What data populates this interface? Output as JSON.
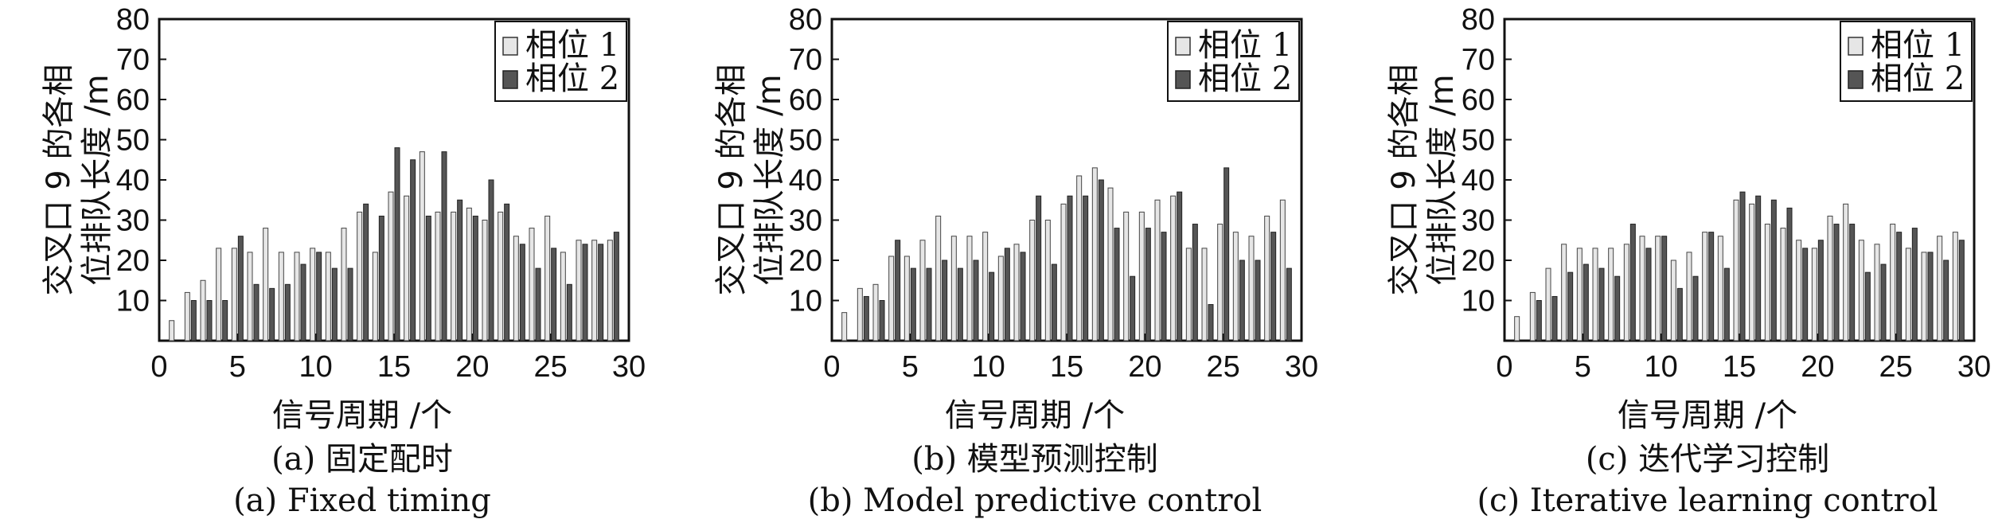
{
  "y_label_line1": "交叉口 9 的各相",
  "y_label_line2": "位排队长度 /m",
  "x_label": "信号周期 /个",
  "legend_labels": [
    "相位 1",
    "相位 2"
  ],
  "colors": {
    "phase1": "#e6e6e6",
    "phase2": "#555555",
    "axis": "#111111"
  },
  "chart_data": [
    {
      "type": "bar",
      "caption_cn": "(a) 固定配时",
      "caption_en": "(a) Fixed timing",
      "xlim": [
        0,
        30
      ],
      "ylim": [
        0,
        80
      ],
      "xticks": [
        0,
        5,
        10,
        15,
        20,
        25,
        30
      ],
      "yticks": [
        10,
        20,
        30,
        40,
        50,
        60,
        70,
        80
      ],
      "x": [
        1,
        2,
        3,
        4,
        5,
        6,
        7,
        8,
        9,
        10,
        11,
        12,
        13,
        14,
        15,
        16,
        17,
        18,
        19,
        20,
        21,
        22,
        23,
        24,
        25,
        26,
        27,
        28,
        29
      ],
      "legend_position": "top-right",
      "series": [
        {
          "name": "相位 1",
          "values": [
            5,
            12,
            15,
            23,
            23,
            22,
            28,
            22,
            22,
            23,
            22,
            28,
            32,
            22,
            37,
            36,
            47,
            32,
            32,
            33,
            30,
            32,
            26,
            28,
            31,
            22,
            25,
            25,
            25
          ]
        },
        {
          "name": "相位 2",
          "values": [
            0,
            10,
            10,
            10,
            26,
            14,
            13,
            14,
            19,
            22,
            18,
            18,
            34,
            31,
            48,
            45,
            31,
            47,
            35,
            31,
            40,
            34,
            24,
            18,
            23,
            14,
            24,
            24,
            27
          ]
        }
      ]
    },
    {
      "type": "bar",
      "caption_cn": "(b) 模型预测控制",
      "caption_en": "(b) Model predictive control",
      "xlim": [
        0,
        30
      ],
      "ylim": [
        0,
        80
      ],
      "xticks": [
        0,
        5,
        10,
        15,
        20,
        25,
        30
      ],
      "yticks": [
        10,
        20,
        30,
        40,
        50,
        60,
        70,
        80
      ],
      "x": [
        1,
        2,
        3,
        4,
        5,
        6,
        7,
        8,
        9,
        10,
        11,
        12,
        13,
        14,
        15,
        16,
        17,
        18,
        19,
        20,
        21,
        22,
        23,
        24,
        25,
        26,
        27,
        28,
        29
      ],
      "legend_position": "top-right",
      "series": [
        {
          "name": "相位 1",
          "values": [
            7,
            13,
            14,
            21,
            21,
            25,
            31,
            26,
            26,
            27,
            21,
            24,
            30,
            30,
            34,
            41,
            43,
            38,
            32,
            32,
            35,
            36,
            23,
            23,
            29,
            27,
            26,
            31,
            35
          ]
        },
        {
          "name": "相位 2",
          "values": [
            0,
            11,
            10,
            25,
            18,
            18,
            20,
            18,
            20,
            17,
            23,
            22,
            36,
            19,
            36,
            36,
            40,
            28,
            16,
            28,
            27,
            37,
            29,
            9,
            43,
            20,
            20,
            27,
            18
          ]
        }
      ]
    },
    {
      "type": "bar",
      "caption_cn": "(c) 迭代学习控制",
      "caption_en": "(c) Iterative learning control",
      "xlim": [
        0,
        30
      ],
      "ylim": [
        0,
        80
      ],
      "xticks": [
        0,
        5,
        10,
        15,
        20,
        25,
        30
      ],
      "yticks": [
        10,
        20,
        30,
        40,
        50,
        60,
        70,
        80
      ],
      "x": [
        1,
        2,
        3,
        4,
        5,
        6,
        7,
        8,
        9,
        10,
        11,
        12,
        13,
        14,
        15,
        16,
        17,
        18,
        19,
        20,
        21,
        22,
        23,
        24,
        25,
        26,
        27,
        28,
        29
      ],
      "legend_position": "top-right",
      "series": [
        {
          "name": "相位 1",
          "values": [
            6,
            12,
            18,
            24,
            23,
            23,
            23,
            24,
            26,
            26,
            20,
            22,
            27,
            26,
            35,
            34,
            29,
            28,
            25,
            23,
            31,
            34,
            25,
            24,
            29,
            23,
            22,
            26,
            27
          ]
        },
        {
          "name": "相位 2",
          "values": [
            0,
            10,
            11,
            17,
            19,
            18,
            16,
            29,
            23,
            26,
            13,
            16,
            27,
            18,
            37,
            36,
            35,
            33,
            23,
            25,
            29,
            29,
            17,
            19,
            27,
            28,
            22,
            20,
            25
          ]
        }
      ]
    }
  ]
}
